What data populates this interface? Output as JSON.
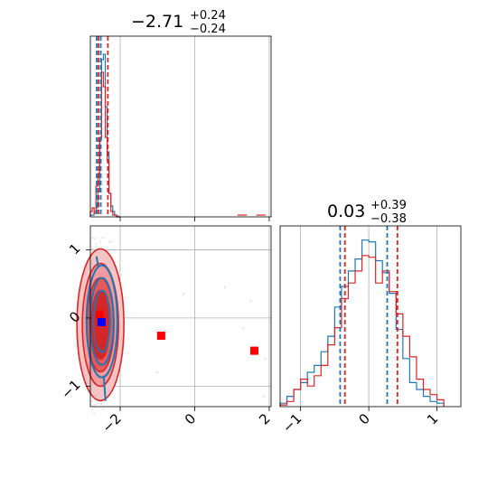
{
  "chart_data": [
    {
      "type": "histogram",
      "panel": "top-left",
      "title": {
        "value": "−2.71",
        "upper": "+0.24",
        "lower": "−0.24"
      },
      "xlim": [
        -2.8,
        2.05
      ],
      "xticks": [
        -2,
        0,
        2
      ],
      "grid": true,
      "quantile_lines_blue": [
        -2.63,
        -2.52
      ],
      "quantile_lines_red": [
        -2.58,
        -2.33
      ],
      "series": [
        {
          "color": "#1f77b4",
          "bins": [
            -2.8,
            -2.75,
            -2.7,
            -2.65,
            -2.6,
            -2.55,
            -2.5,
            -2.45,
            -2.4,
            -2.35,
            -2.3,
            -2.25,
            -2.2,
            -2.15,
            -2.1,
            -2.05,
            -2.0
          ],
          "counts": [
            0.01,
            0.01,
            0.03,
            0.05,
            0.14,
            0.43,
            0.87,
            0.9,
            0.61,
            0.36,
            0.13,
            0.06,
            0.03,
            0.01,
            0.005,
            0.0
          ]
        },
        {
          "color": "#d62728",
          "bins": [
            -2.8,
            -2.75,
            -2.7,
            -2.65,
            -2.6,
            -2.55,
            -2.5,
            -2.45,
            -2.4,
            -2.35,
            -2.3,
            -2.25,
            -2.2,
            -2.15,
            -2.1,
            -2.05,
            -2.0
          ],
          "counts": [
            0.03,
            0.05,
            0.02,
            0.17,
            0.24,
            0.44,
            0.8,
            0.72,
            0.44,
            0.31,
            0.13,
            0.03,
            0.01,
            0.01,
            0.0,
            0.0
          ],
          "outlier_bins": [
            [
              1.25,
              0.01
            ],
            [
              1.75,
              0.01
            ]
          ]
        }
      ]
    },
    {
      "type": "scatter_contour",
      "panel": "bottom-left",
      "xlim": [
        -2.8,
        2.05
      ],
      "ylim": [
        -1.3,
        1.35
      ],
      "xticks": [
        -2,
        0,
        2
      ],
      "yticks": [
        -1,
        0,
        1
      ],
      "grid": true,
      "contour_center_red": [
        -2.53,
        -0.1
      ],
      "contour_center_blue": [
        -2.49,
        -0.05
      ],
      "markers": [
        {
          "color": "#ff0000",
          "shape": "square",
          "x": -2.55,
          "y": 0.05
        },
        {
          "color": "#0000ff",
          "shape": "square",
          "x": -2.5,
          "y": -0.06
        },
        {
          "color": "#ff0000",
          "shape": "square",
          "x": -0.9,
          "y": -0.26
        },
        {
          "color": "#ff0000",
          "shape": "square",
          "x": 1.6,
          "y": -0.48
        }
      ]
    },
    {
      "type": "histogram",
      "panel": "bottom-right",
      "title": {
        "value": "0.03",
        "upper": "+0.39",
        "lower": "−0.38"
      },
      "xlim": [
        -1.3,
        1.35
      ],
      "xticks": [
        -1,
        0,
        1
      ],
      "grid": true,
      "quantile_lines_blue": [
        -0.42,
        0.27
      ],
      "quantile_lines_red": [
        -0.35,
        0.42
      ],
      "series": [
        {
          "color": "#1f77b4",
          "bins": [
            -1.3,
            -1.2,
            -1.1,
            -1.0,
            -0.9,
            -0.8,
            -0.7,
            -0.6,
            -0.5,
            -0.4,
            -0.3,
            -0.2,
            -0.1,
            0.0,
            0.1,
            0.2,
            0.3,
            0.4,
            0.5,
            0.6,
            0.7,
            0.8,
            0.9,
            1.0,
            1.1
          ],
          "counts": [
            0.02,
            0.06,
            0.1,
            0.14,
            0.2,
            0.24,
            0.32,
            0.41,
            0.58,
            0.7,
            0.79,
            0.86,
            0.97,
            0.96,
            0.85,
            0.78,
            0.66,
            0.45,
            0.28,
            0.14,
            0.1,
            0.06,
            0.03,
            0.02
          ]
        },
        {
          "color": "#d62728",
          "bins": [
            -1.3,
            -1.2,
            -1.1,
            -1.0,
            -0.9,
            -0.8,
            -0.7,
            -0.6,
            -0.5,
            -0.4,
            -0.3,
            -0.2,
            -0.1,
            0.0,
            0.1,
            0.2,
            0.3,
            0.4,
            0.5,
            0.6,
            0.7,
            0.8,
            0.9,
            1.0,
            1.1
          ],
          "counts": [
            0.01,
            0.03,
            0.1,
            0.16,
            0.12,
            0.18,
            0.24,
            0.36,
            0.46,
            0.63,
            0.72,
            0.79,
            0.88,
            0.87,
            0.72,
            0.79,
            0.67,
            0.54,
            0.41,
            0.29,
            0.16,
            0.1,
            0.07,
            0.04
          ]
        }
      ]
    }
  ]
}
